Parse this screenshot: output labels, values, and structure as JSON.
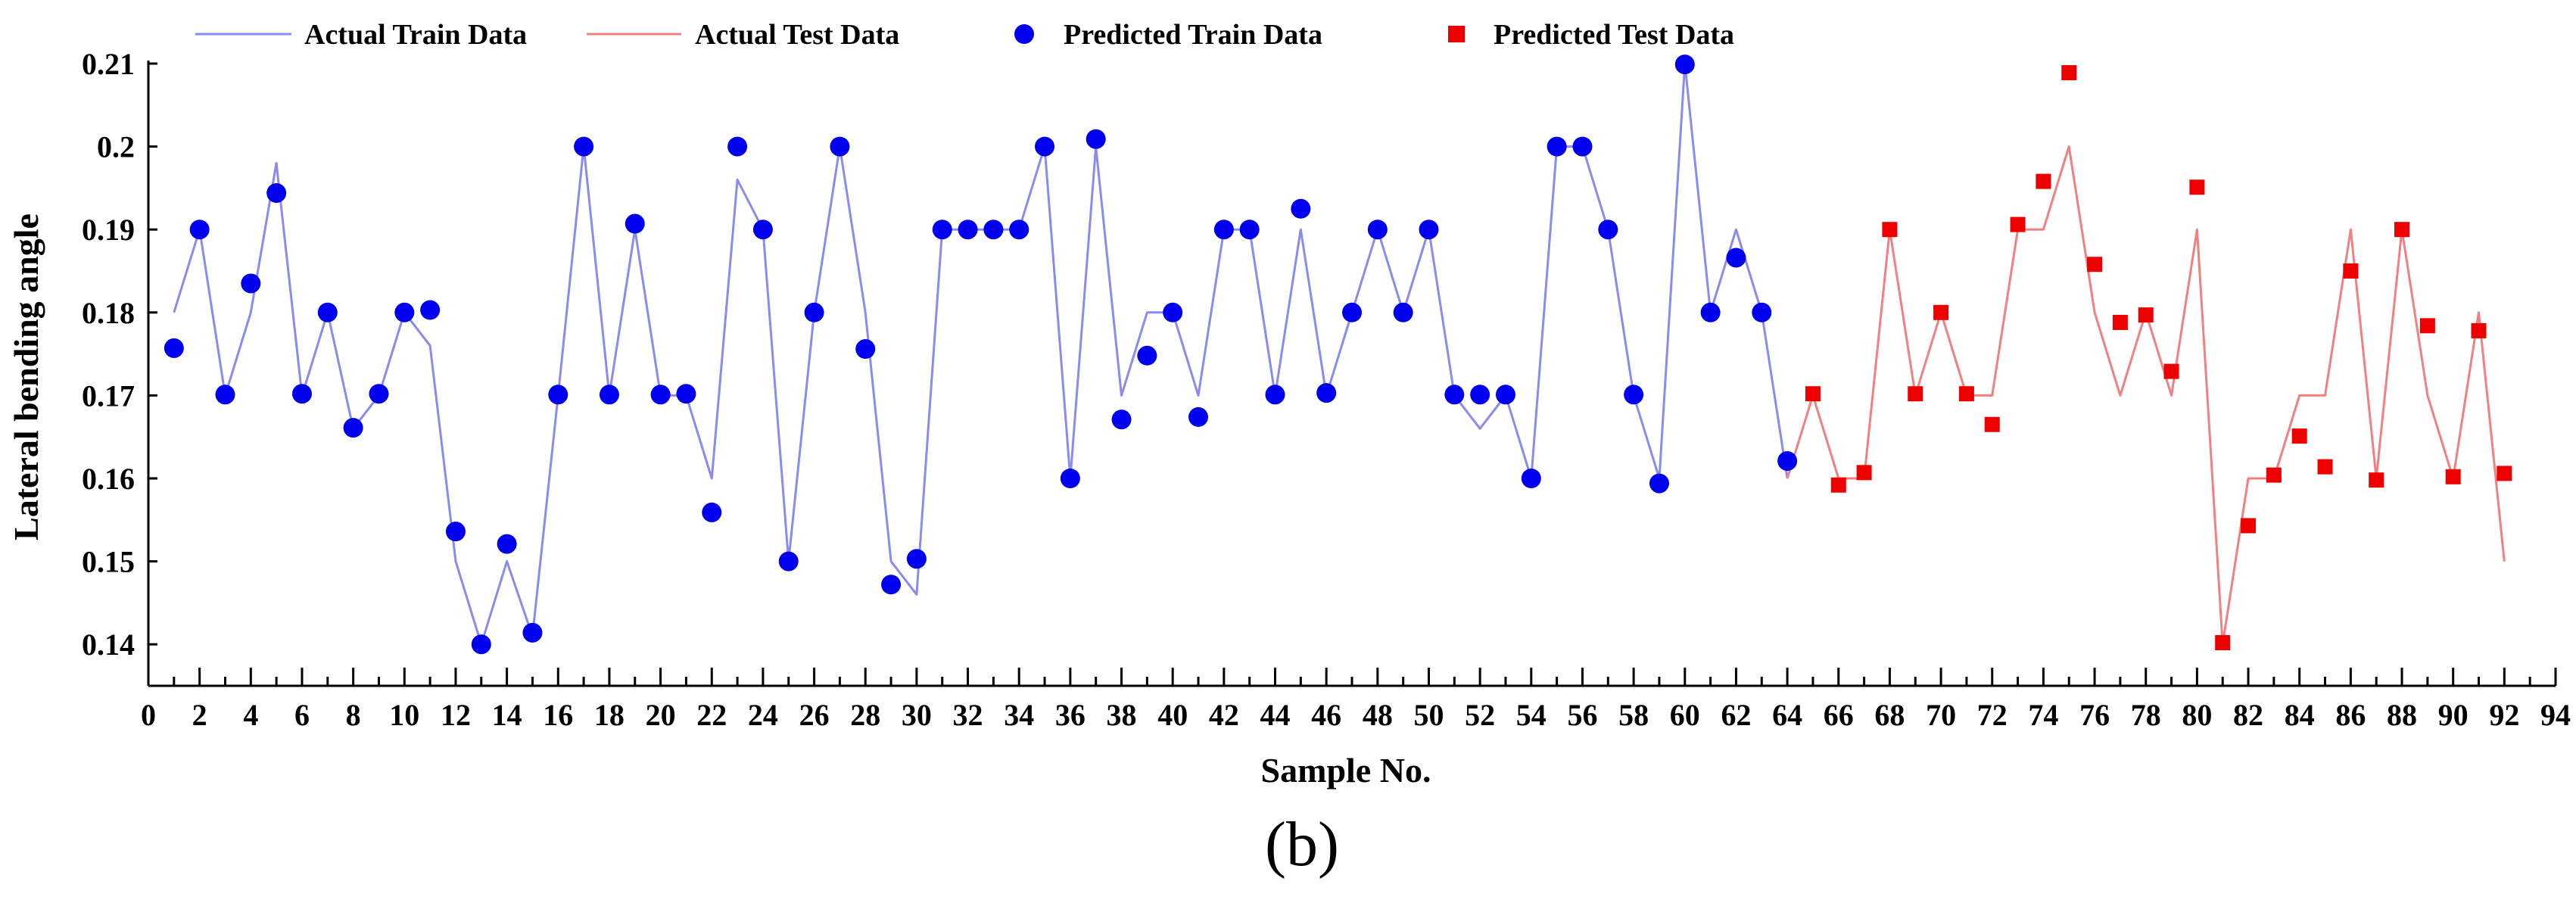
{
  "chart_data": {
    "type": "line",
    "title": "",
    "panel_label": "(b)",
    "xlabel": "Sample No.",
    "ylabel": "Lateral bending angle",
    "xlim": [
      0,
      94
    ],
    "ylim": [
      0.135,
      0.21
    ],
    "xticks": [
      0,
      2,
      4,
      6,
      8,
      10,
      12,
      14,
      16,
      18,
      20,
      22,
      24,
      26,
      28,
      30,
      32,
      34,
      36,
      38,
      40,
      42,
      44,
      46,
      48,
      50,
      52,
      54,
      56,
      58,
      60,
      62,
      64,
      66,
      68,
      70,
      72,
      74,
      76,
      78,
      80,
      82,
      84,
      86,
      88,
      90,
      92,
      94
    ],
    "yticks": [
      0.14,
      0.15,
      0.16,
      0.17,
      0.18,
      0.19,
      0.2,
      0.21
    ],
    "ytick_labels": [
      "0.14",
      "0.15",
      "0.16",
      "0.17",
      "0.18",
      "0.19",
      "0.2",
      "0.21"
    ],
    "grid": false,
    "legend_position": "top",
    "series": [
      {
        "name": "Actual Train Data",
        "kind": "line",
        "color": "#8a8af0",
        "x": [
          1,
          2,
          3,
          4,
          5,
          6,
          7,
          8,
          9,
          10,
          11,
          12,
          13,
          14,
          15,
          16,
          17,
          18,
          19,
          20,
          21,
          22,
          23,
          24,
          25,
          26,
          27,
          28,
          29,
          30,
          31,
          32,
          33,
          34,
          35,
          36,
          37,
          38,
          39,
          40,
          41,
          42,
          43,
          44,
          45,
          46,
          47,
          48,
          49,
          50,
          51,
          52,
          53,
          54,
          55,
          56,
          57,
          58,
          59,
          60,
          61,
          62,
          63,
          64
        ],
        "values": [
          0.18,
          0.19,
          0.17,
          0.18,
          0.198,
          0.17,
          0.18,
          0.166,
          0.17,
          0.18,
          0.176,
          0.15,
          0.14,
          0.15,
          0.141,
          0.17,
          0.2,
          0.17,
          0.19,
          0.17,
          0.17,
          0.16,
          0.196,
          0.19,
          0.15,
          0.18,
          0.2,
          0.18,
          0.15,
          0.146,
          0.19,
          0.19,
          0.19,
          0.19,
          0.2,
          0.16,
          0.2,
          0.17,
          0.18,
          0.18,
          0.17,
          0.19,
          0.19,
          0.17,
          0.19,
          0.17,
          0.18,
          0.19,
          0.18,
          0.19,
          0.17,
          0.166,
          0.17,
          0.16,
          0.2,
          0.2,
          0.19,
          0.17,
          0.16,
          0.21,
          0.18,
          0.19,
          0.18,
          0.16
        ]
      },
      {
        "name": "Actual Test Data",
        "kind": "line",
        "color": "#f28080",
        "x": [
          64,
          65,
          66,
          67,
          68,
          69,
          70,
          71,
          72,
          73,
          74,
          75,
          76,
          77,
          78,
          79,
          80,
          81,
          82,
          83,
          84,
          85,
          86,
          87,
          88,
          89,
          90,
          91,
          92
        ],
        "values": [
          0.16,
          0.17,
          0.16,
          0.16,
          0.19,
          0.17,
          0.18,
          0.17,
          0.17,
          0.19,
          0.19,
          0.2,
          0.18,
          0.17,
          0.18,
          0.17,
          0.19,
          0.14,
          0.16,
          0.16,
          0.17,
          0.17,
          0.19,
          0.16,
          0.19,
          0.17,
          0.16,
          0.18,
          0.15
        ]
      },
      {
        "name": "Predicted Train Data",
        "kind": "scatter",
        "marker": "circle",
        "color": "#0000ee",
        "x": [
          1,
          2,
          3,
          4,
          5,
          6,
          7,
          8,
          9,
          10,
          11,
          12,
          13,
          14,
          15,
          16,
          17,
          18,
          19,
          20,
          21,
          22,
          23,
          24,
          25,
          26,
          27,
          28,
          29,
          30,
          31,
          32,
          33,
          34,
          35,
          36,
          37,
          38,
          39,
          40,
          41,
          42,
          43,
          44,
          45,
          46,
          47,
          48,
          49,
          50,
          51,
          52,
          53,
          54,
          55,
          56,
          57,
          58,
          59,
          60,
          61,
          62,
          63,
          64
        ],
        "values": [
          0.1757,
          0.19,
          0.1701,
          0.1835,
          0.1944,
          0.1702,
          0.18,
          0.1661,
          0.1702,
          0.18,
          0.1803,
          0.1536,
          0.14,
          0.1521,
          0.1414,
          0.1701,
          0.2,
          0.1701,
          0.1907,
          0.1701,
          0.1702,
          0.1559,
          0.2,
          0.19,
          0.15,
          0.18,
          0.2,
          0.1756,
          0.1472,
          0.1503,
          0.19,
          0.19,
          0.19,
          0.19,
          0.2,
          0.16,
          0.2009,
          0.1671,
          0.1748,
          0.18,
          0.1674,
          0.19,
          0.19,
          0.1701,
          0.1925,
          0.1703,
          0.18,
          0.19,
          0.18,
          0.19,
          0.1701,
          0.1701,
          0.1701,
          0.16,
          0.2,
          0.2,
          0.19,
          0.1701,
          0.1594,
          0.2099,
          0.18,
          0.1866,
          0.18,
          0.1621
        ]
      },
      {
        "name": "Predicted Test Data",
        "kind": "scatter",
        "marker": "square",
        "color": "#ee0000",
        "x": [
          65,
          66,
          67,
          68,
          69,
          70,
          71,
          72,
          73,
          74,
          75,
          76,
          77,
          78,
          79,
          80,
          81,
          82,
          83,
          84,
          85,
          86,
          87,
          88,
          89,
          90,
          91,
          92
        ],
        "values": [
          0.1702,
          0.1592,
          0.1607,
          0.19,
          0.1702,
          0.18,
          0.1702,
          0.1665,
          0.1906,
          0.1958,
          0.2089,
          0.1858,
          0.1788,
          0.1797,
          0.1729,
          0.1951,
          0.1402,
          0.1543,
          0.1604,
          0.1651,
          0.1614,
          0.185,
          0.1598,
          0.19,
          0.1784,
          0.1602,
          0.1778,
          0.1606
        ]
      }
    ]
  }
}
